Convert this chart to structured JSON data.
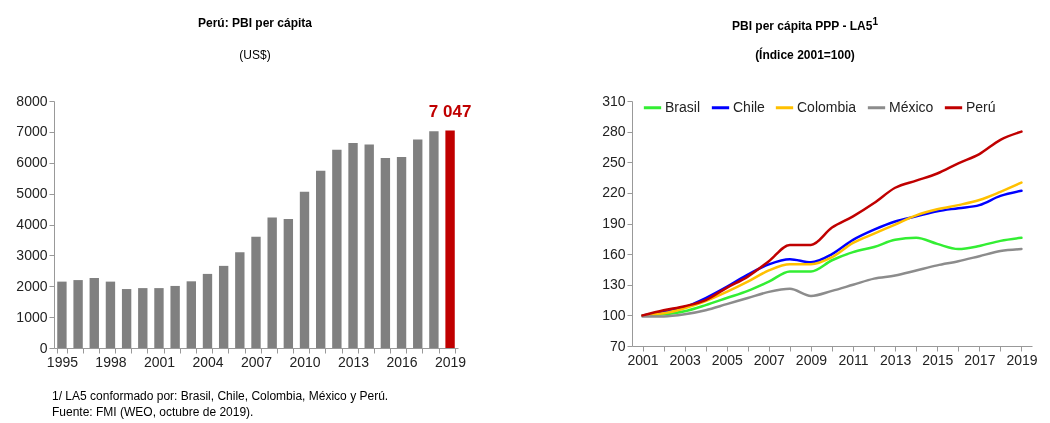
{
  "chart_data": [
    {
      "type": "bar",
      "title": "Perú: PBI per cápita",
      "subtitle": "(US$)",
      "categories": [
        "1995",
        null,
        null,
        "1998",
        null,
        null,
        "2001",
        null,
        null,
        "2004",
        null,
        null,
        "2007",
        null,
        null,
        "2010",
        null,
        null,
        "2013",
        null,
        null,
        "2016",
        null,
        null,
        "2019"
      ],
      "values": [
        2150,
        2200,
        2270,
        2150,
        1910,
        1940,
        1940,
        2010,
        2160,
        2400,
        2660,
        3100,
        3600,
        4230,
        4180,
        5060,
        5740,
        6420,
        6640,
        6590,
        6150,
        6190,
        6750,
        7020,
        7047
      ],
      "colors": [
        "#808080",
        "#808080",
        "#808080",
        "#808080",
        "#808080",
        "#808080",
        "#808080",
        "#808080",
        "#808080",
        "#808080",
        "#808080",
        "#808080",
        "#808080",
        "#808080",
        "#808080",
        "#808080",
        "#808080",
        "#808080",
        "#808080",
        "#808080",
        "#808080",
        "#808080",
        "#808080",
        "#808080",
        "#c00000"
      ],
      "value_labels": [
        null,
        null,
        null,
        null,
        null,
        null,
        null,
        null,
        null,
        null,
        null,
        null,
        null,
        null,
        null,
        null,
        null,
        null,
        null,
        null,
        null,
        null,
        null,
        null,
        "7 047"
      ],
      "ylim": [
        0,
        8000
      ],
      "yticks": [
        0,
        1000,
        2000,
        3000,
        4000,
        5000,
        6000,
        7000,
        8000
      ],
      "grid": false,
      "annotations": [
        "1/ LA5 conformado por: Brasil, Chile, Colombia, México y Perú.",
        "Fuente: FMI (WEO, octubre de 2019)."
      ]
    },
    {
      "type": "line",
      "title": "PBI per cápita PPP - LA5$^{1}$",
      "subtitle": "(Índice 2001=100)",
      "categories": [
        "2001",
        null,
        "2003",
        null,
        "2005",
        null,
        "2007",
        null,
        "2009",
        null,
        "2011",
        null,
        "2013",
        null,
        "2015",
        null,
        "2017",
        null,
        "2019"
      ],
      "series": [
        {
          "name": "Brasil",
          "color": "#33ee33",
          "values": [
            100,
            101,
            104,
            110,
            117,
            124,
            133,
            143,
            143,
            154,
            162,
            167,
            174,
            176,
            170,
            165,
            168,
            173,
            176
          ]
        },
        {
          "name": "Chile",
          "color": "#0000ff",
          "values": [
            100,
            103,
            108,
            117,
            128,
            140,
            150,
            155,
            152,
            160,
            174,
            184,
            192,
            197,
            202,
            205,
            208,
            217,
            222
          ]
        },
        {
          "name": "Colombia",
          "color": "#ffc000",
          "values": [
            100,
            102,
            107,
            114,
            123,
            133,
            144,
            150,
            150,
            157,
            171,
            180,
            189,
            198,
            204,
            208,
            213,
            221,
            230
          ]
        },
        {
          "name": "México",
          "color": "#8c8c8c",
          "values": [
            99,
            99,
            101,
            105,
            111,
            117,
            123,
            126,
            119,
            124,
            130,
            136,
            139,
            144,
            149,
            153,
            158,
            163,
            165
          ]
        },
        {
          "name": "Perú",
          "color": "#c00000",
          "values": [
            100,
            105,
            109,
            115,
            127,
            138,
            153,
            169,
            169,
            186,
            197,
            210,
            225,
            232,
            239,
            249,
            258,
            272,
            280
          ]
        }
      ],
      "ylim": [
        70,
        310
      ],
      "yticks": [
        70,
        100,
        130,
        160,
        190,
        220,
        250,
        280,
        310
      ],
      "grid": false,
      "legend": "top"
    }
  ]
}
